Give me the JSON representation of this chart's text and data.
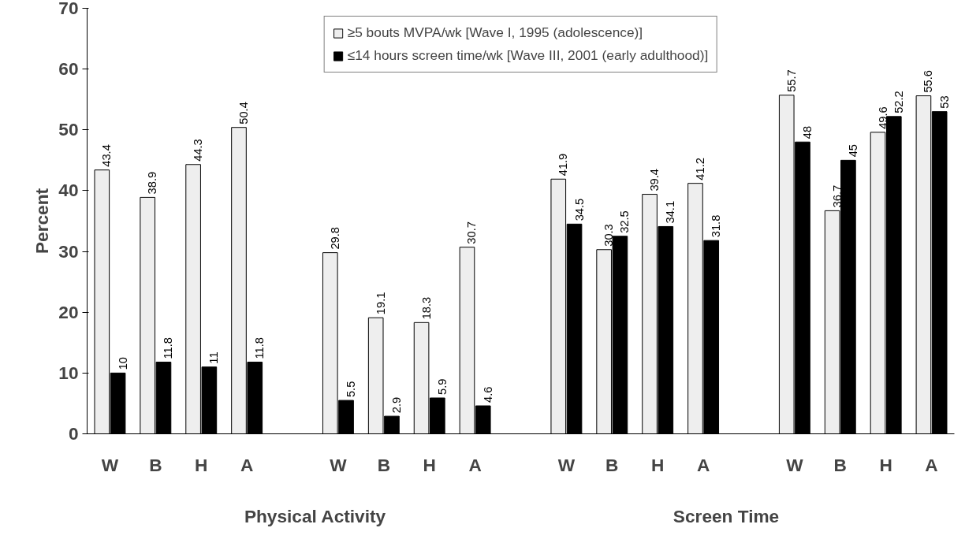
{
  "chart_data": {
    "type": "bar",
    "ylabel": "Percent",
    "categories": [
      "W",
      "B",
      "H",
      "A",
      null,
      "W",
      "B",
      "H",
      "A",
      null,
      "W",
      "B",
      "H",
      "A",
      null,
      "W",
      "B",
      "H",
      "A"
    ],
    "series": [
      {
        "name": "≥5 bouts MVPA/wk [Wave I, 1995 (adolescence)]",
        "color": "#eeeeee",
        "values": [
          43.4,
          38.9,
          44.3,
          50.4,
          null,
          29.8,
          19.1,
          18.3,
          30.7,
          null,
          41.9,
          30.3,
          39.4,
          41.2,
          null,
          55.7,
          36.7,
          49.6,
          55.6
        ]
      },
      {
        "name": "≤14 hours screen time/wk [Wave III, 2001 (early adulthood)]",
        "color": "#000000",
        "values": [
          10,
          11.8,
          11,
          11.8,
          null,
          5.5,
          2.9,
          5.9,
          4.6,
          null,
          34.5,
          32.5,
          34.1,
          31.8,
          null,
          48,
          45,
          52.2,
          53
        ]
      }
    ],
    "ylim": [
      0,
      70
    ],
    "yticks": [
      0,
      10,
      20,
      30,
      40,
      50,
      60,
      70
    ],
    "data_labels": true,
    "legend": "top",
    "grid": false,
    "annotations": [
      "Physical Activity",
      "Screen Time"
    ]
  }
}
